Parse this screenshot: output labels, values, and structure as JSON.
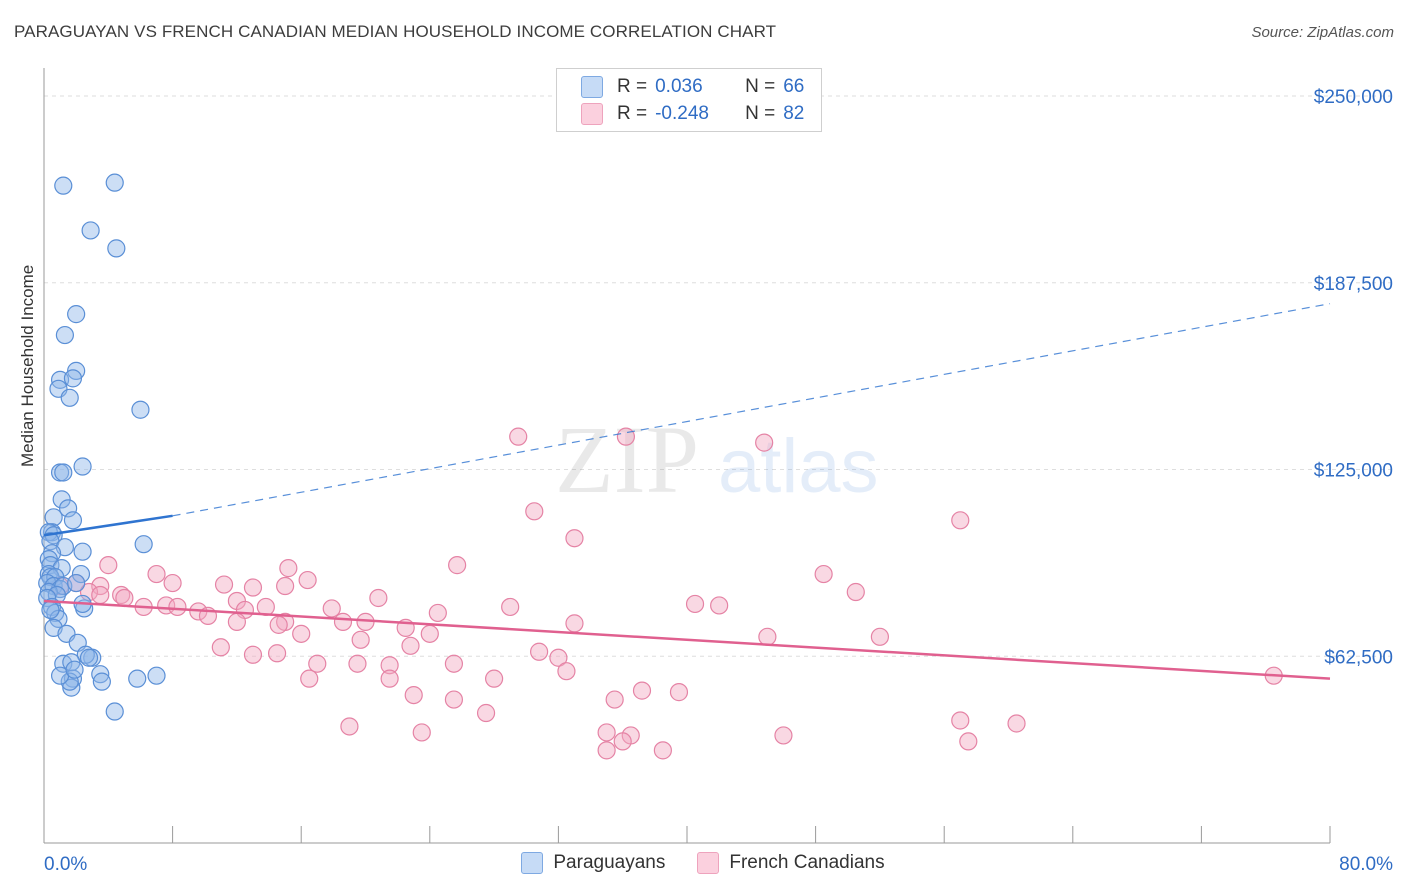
{
  "title": "PARAGUAYAN VS FRENCH CANADIAN MEDIAN HOUSEHOLD INCOME CORRELATION CHART",
  "source": "Source: ZipAtlas.com",
  "watermark": {
    "zip": "ZIP",
    "atlas": "atlas"
  },
  "legend_top": [
    {
      "r_label": "R =",
      "r_value": "0.036",
      "n_label": "N =",
      "n_value": "66",
      "color": "#8fb5e8"
    },
    {
      "r_label": "R =",
      "r_value": "-0.248",
      "n_label": "N =",
      "n_value": "82",
      "color": "#f2a9c1"
    }
  ],
  "legend_bottom": [
    {
      "label": "Paraguayans",
      "color": "#8fb5e8"
    },
    {
      "label": "French Canadians",
      "color": "#f2a9c1"
    }
  ],
  "chart_data": {
    "type": "scatter",
    "xlabel": "",
    "ylabel": "Median Household Income",
    "xlim": [
      0,
      80
    ],
    "ylim": [
      0,
      260000
    ],
    "x_tick_labels": {
      "min": "0.0%",
      "max": "80.0%"
    },
    "y_ticks": [
      {
        "value": 62500,
        "label": "$62,500"
      },
      {
        "value": 125000,
        "label": "$125,000"
      },
      {
        "value": 187500,
        "label": "$187,500"
      },
      {
        "value": 250000,
        "label": "$250,000"
      }
    ],
    "series": [
      {
        "name": "Paraguayans",
        "color": "#8fb5e8",
        "stroke": "#5a8fd6",
        "trend": {
          "x0": 0,
          "y0": 103000,
          "x1": 8,
          "y1": 109500,
          "x_end": 80,
          "y_end": 180500,
          "color": "#2f74d0"
        },
        "points": [
          [
            1.2,
            220000
          ],
          [
            4.4,
            221000
          ],
          [
            2.9,
            205000
          ],
          [
            4.5,
            199000
          ],
          [
            2.0,
            177000
          ],
          [
            1.3,
            170000
          ],
          [
            2.0,
            158000
          ],
          [
            1.0,
            155000
          ],
          [
            1.8,
            155500
          ],
          [
            0.9,
            152000
          ],
          [
            1.6,
            149000
          ],
          [
            6.0,
            145000
          ],
          [
            2.4,
            126000
          ],
          [
            1.0,
            124000
          ],
          [
            1.2,
            124000
          ],
          [
            1.1,
            115000
          ],
          [
            1.5,
            112000
          ],
          [
            0.6,
            109000
          ],
          [
            1.8,
            108000
          ],
          [
            0.5,
            104000
          ],
          [
            0.3,
            104000
          ],
          [
            0.6,
            103000
          ],
          [
            0.4,
            101000
          ],
          [
            1.3,
            99000
          ],
          [
            6.2,
            100000
          ],
          [
            2.4,
            97500
          ],
          [
            0.5,
            97000
          ],
          [
            0.3,
            95000
          ],
          [
            0.4,
            93000
          ],
          [
            1.1,
            92000
          ],
          [
            2.3,
            90000
          ],
          [
            0.3,
            90000
          ],
          [
            0.4,
            89000
          ],
          [
            0.7,
            89000
          ],
          [
            0.2,
            87000
          ],
          [
            0.6,
            86000
          ],
          [
            1.0,
            85000
          ],
          [
            1.2,
            86000
          ],
          [
            2.0,
            87000
          ],
          [
            0.3,
            84000
          ],
          [
            0.8,
            83000
          ],
          [
            0.2,
            82000
          ],
          [
            0.5,
            79000
          ],
          [
            2.5,
            78500
          ],
          [
            2.4,
            80000
          ],
          [
            0.7,
            77000
          ],
          [
            0.9,
            75000
          ],
          [
            0.6,
            72000
          ],
          [
            1.4,
            70000
          ],
          [
            2.1,
            67000
          ],
          [
            3.0,
            62000
          ],
          [
            2.6,
            63000
          ],
          [
            1.2,
            60000
          ],
          [
            1.7,
            60500
          ],
          [
            3.5,
            56500
          ],
          [
            1.8,
            55000
          ],
          [
            1.7,
            52000
          ],
          [
            7.0,
            56000
          ],
          [
            5.8,
            55000
          ],
          [
            1.6,
            54000
          ],
          [
            3.6,
            54000
          ],
          [
            1.0,
            56000
          ],
          [
            4.4,
            44000
          ],
          [
            1.9,
            58000
          ],
          [
            2.8,
            62000
          ],
          [
            0.4,
            78000
          ]
        ]
      },
      {
        "name": "French Canadians",
        "color": "#f2a9c1",
        "stroke": "#e583a5",
        "trend": {
          "x0": 0,
          "y0": 81000,
          "x1": 80,
          "y1": 55000,
          "color": "#e0608f"
        },
        "points": [
          [
            29.5,
            136000
          ],
          [
            36.2,
            136000
          ],
          [
            44.8,
            134000
          ],
          [
            30.5,
            111000
          ],
          [
            33.0,
            102000
          ],
          [
            57.0,
            108000
          ],
          [
            25.7,
            93000
          ],
          [
            15.2,
            92000
          ],
          [
            4.0,
            93000
          ],
          [
            7.0,
            90000
          ],
          [
            48.5,
            90000
          ],
          [
            16.4,
            88000
          ],
          [
            8.0,
            87000
          ],
          [
            3.5,
            86000
          ],
          [
            2.0,
            87000
          ],
          [
            1.0,
            86000
          ],
          [
            2.8,
            84000
          ],
          [
            13.0,
            85500
          ],
          [
            11.2,
            86500
          ],
          [
            15.0,
            86000
          ],
          [
            50.5,
            84000
          ],
          [
            20.8,
            82000
          ],
          [
            3.5,
            83000
          ],
          [
            4.8,
            83000
          ],
          [
            5.0,
            82000
          ],
          [
            12.0,
            81000
          ],
          [
            7.6,
            79500
          ],
          [
            6.2,
            79000
          ],
          [
            9.6,
            77500
          ],
          [
            8.3,
            79000
          ],
          [
            10.2,
            76000
          ],
          [
            12.5,
            78000
          ],
          [
            13.8,
            79000
          ],
          [
            17.9,
            78500
          ],
          [
            20.0,
            74000
          ],
          [
            24.5,
            77000
          ],
          [
            29.0,
            79000
          ],
          [
            33.0,
            73500
          ],
          [
            40.5,
            80000
          ],
          [
            42.0,
            79500
          ],
          [
            12.0,
            74000
          ],
          [
            15.0,
            74000
          ],
          [
            18.6,
            74000
          ],
          [
            14.6,
            73000
          ],
          [
            16.0,
            70000
          ],
          [
            22.5,
            72000
          ],
          [
            24.0,
            70000
          ],
          [
            19.7,
            68000
          ],
          [
            22.8,
            66000
          ],
          [
            30.8,
            64000
          ],
          [
            32.0,
            62000
          ],
          [
            45.0,
            69000
          ],
          [
            11.0,
            65500
          ],
          [
            13.0,
            63000
          ],
          [
            14.5,
            63500
          ],
          [
            17.0,
            60000
          ],
          [
            19.5,
            60000
          ],
          [
            21.5,
            59500
          ],
          [
            25.5,
            60000
          ],
          [
            28.0,
            55000
          ],
          [
            32.5,
            57500
          ],
          [
            16.5,
            55000
          ],
          [
            21.5,
            55000
          ],
          [
            23.0,
            49500
          ],
          [
            25.5,
            48000
          ],
          [
            27.5,
            43500
          ],
          [
            39.5,
            50500
          ],
          [
            37.2,
            51000
          ],
          [
            35.5,
            48000
          ],
          [
            36.5,
            36000
          ],
          [
            35.0,
            37000
          ],
          [
            35.0,
            31000
          ],
          [
            38.5,
            31000
          ],
          [
            19.0,
            39000
          ],
          [
            57.0,
            41000
          ],
          [
            60.5,
            40000
          ],
          [
            57.5,
            34000
          ],
          [
            76.5,
            56000
          ],
          [
            23.5,
            37000
          ],
          [
            46.0,
            36000
          ],
          [
            36.0,
            34000
          ],
          [
            52.0,
            69000
          ]
        ]
      }
    ]
  }
}
